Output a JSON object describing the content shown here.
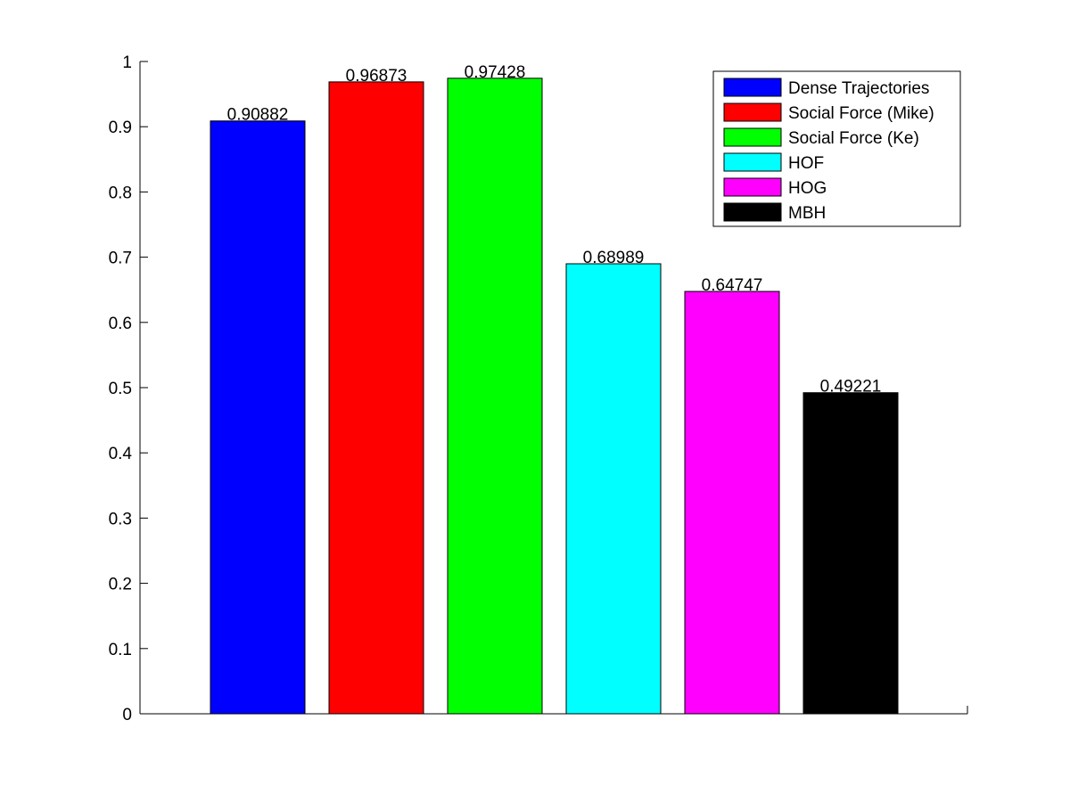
{
  "chart_data": {
    "type": "bar",
    "categories": [
      "Dense Trajectories",
      "Social Force (Mike)",
      "Social Force (Ke)",
      "HOF",
      "HOG",
      "MBH"
    ],
    "values": [
      0.90882,
      0.96873,
      0.97428,
      0.68989,
      0.64747,
      0.49221
    ],
    "value_labels": [
      "0.90882",
      "0.96873",
      "0.97428",
      "0.68989",
      "0.64747",
      "0.49221"
    ],
    "colors": [
      "#0000ff",
      "#ff0000",
      "#00ff00",
      "#00ffff",
      "#ff00ff",
      "#000000"
    ],
    "ylim": [
      0,
      1
    ],
    "yticks": [
      0,
      0.1,
      0.2,
      0.3,
      0.4,
      0.5,
      0.6,
      0.7,
      0.8,
      0.9,
      1
    ],
    "ytick_labels": [
      "0",
      "0.1",
      "0.2",
      "0.3",
      "0.4",
      "0.5",
      "0.6",
      "0.7",
      "0.8",
      "0.9",
      "1"
    ],
    "grid": false,
    "legend": {
      "placement": "top-right",
      "entries": [
        "Dense Trajectories",
        "Social Force (Mike)",
        "Social Force (Ke)",
        "HOF",
        "HOG",
        "MBH"
      ]
    }
  }
}
